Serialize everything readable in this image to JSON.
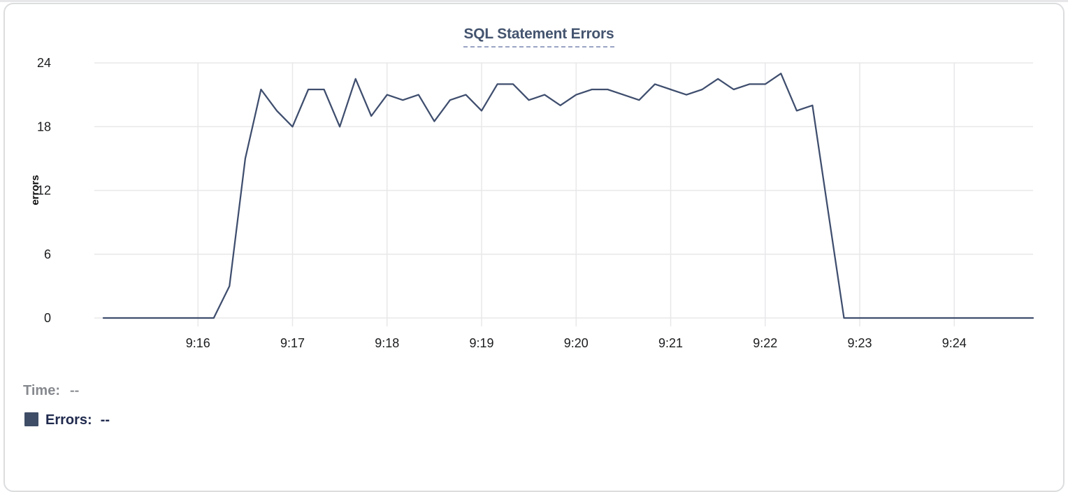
{
  "chart": {
    "title": "SQL Statement Errors",
    "y_axis": {
      "label": "errors",
      "ticks": [
        0,
        6,
        12,
        18,
        24
      ],
      "max": 24
    },
    "x_axis": {
      "tick_labels": [
        "9:16",
        "9:17",
        "9:18",
        "9:19",
        "9:20",
        "9:21",
        "9:22",
        "9:23",
        "9:24"
      ]
    },
    "readout": {
      "time_label": "Time:",
      "time_value": "--",
      "series_label": "Errors:",
      "series_value": "--"
    },
    "colors": {
      "line": "#3F4E6E",
      "grid": "#E8E8EA",
      "tick_text": "#1B1C1E",
      "title": "#44546F",
      "title_underline": "#9AA5C4",
      "time_label": "#86898E",
      "time_value": "#97999D",
      "errors_label": "#202A4E",
      "legend_swatch": "#3F4D66",
      "card_border": "#DCDDDF"
    }
  },
  "chart_data": {
    "type": "line",
    "title": "SQL Statement Errors",
    "xlabel": "time",
    "ylabel": "errors",
    "ylim": [
      0,
      24
    ],
    "grid": true,
    "legend_position": "bottom-left",
    "interval_seconds": 10,
    "x": [
      "9:15:00",
      "9:15:10",
      "9:15:20",
      "9:15:30",
      "9:15:40",
      "9:15:50",
      "9:16:00",
      "9:16:10",
      "9:16:20",
      "9:16:30",
      "9:16:40",
      "9:16:50",
      "9:17:00",
      "9:17:10",
      "9:17:20",
      "9:17:30",
      "9:17:40",
      "9:17:50",
      "9:18:00",
      "9:18:10",
      "9:18:20",
      "9:18:30",
      "9:18:40",
      "9:18:50",
      "9:19:00",
      "9:19:10",
      "9:19:20",
      "9:19:30",
      "9:19:40",
      "9:19:50",
      "9:20:00",
      "9:20:10",
      "9:20:20",
      "9:20:30",
      "9:20:40",
      "9:20:50",
      "9:21:00",
      "9:21:10",
      "9:21:20",
      "9:21:30",
      "9:21:40",
      "9:21:50",
      "9:22:00",
      "9:22:10",
      "9:22:20",
      "9:22:30",
      "9:22:40",
      "9:22:50",
      "9:23:00",
      "9:23:10",
      "9:23:20",
      "9:23:30",
      "9:23:40",
      "9:23:50",
      "9:24:00",
      "9:24:10",
      "9:24:20",
      "9:24:30",
      "9:24:40",
      "9:24:50"
    ],
    "series": [
      {
        "name": "Errors",
        "values": [
          0,
          0,
          0,
          0,
          0,
          0,
          0,
          0,
          3,
          15,
          21.5,
          19.5,
          18,
          21.5,
          21.5,
          18,
          22.5,
          19,
          21,
          20.5,
          21,
          18.5,
          20.5,
          21,
          19.5,
          22,
          22,
          20.5,
          21,
          20,
          21,
          21.5,
          21.5,
          21,
          20.5,
          22,
          21.5,
          21,
          21.5,
          22.5,
          21.5,
          22,
          22,
          23,
          19.5,
          20,
          10,
          0,
          0,
          0,
          0,
          0,
          0,
          0,
          0,
          0,
          0,
          0,
          0,
          0
        ]
      }
    ]
  }
}
